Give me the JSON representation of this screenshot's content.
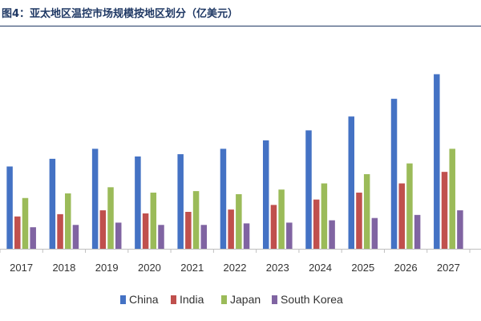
{
  "title": "图4：亚太地区温控市场规模按地区划分（亿美元）",
  "colors": {
    "title": "#1f3864",
    "axis": "#bfbfbf",
    "China": "#4472c4",
    "India": "#c0504d",
    "Japan": "#9bbb59",
    "South Korea": "#8064a2"
  },
  "chart_data": {
    "type": "bar",
    "title": "图4：亚太地区温控市场规模按地区划分（亿美元）",
    "xlabel": "",
    "ylabel": "",
    "categories": [
      "2017",
      "2018",
      "2019",
      "2020",
      "2021",
      "2022",
      "2023",
      "2024",
      "2025",
      "2026",
      "2027"
    ],
    "series": [
      {
        "name": "China",
        "values": [
          107,
          117,
          130,
          120,
          123,
          130,
          141,
          154,
          172,
          195,
          227
        ]
      },
      {
        "name": "India",
        "values": [
          42,
          45,
          50,
          46,
          48,
          51,
          57,
          64,
          73,
          85,
          100
        ]
      },
      {
        "name": "Japan",
        "values": [
          66,
          72,
          80,
          73,
          75,
          71,
          77,
          85,
          97,
          111,
          130
        ]
      },
      {
        "name": "South Korea",
        "values": [
          28,
          31,
          34,
          31,
          31,
          33,
          34,
          37,
          40,
          44,
          50
        ]
      }
    ],
    "ylim": [
      0,
      240
    ],
    "grid": false,
    "legend": "bottom"
  }
}
